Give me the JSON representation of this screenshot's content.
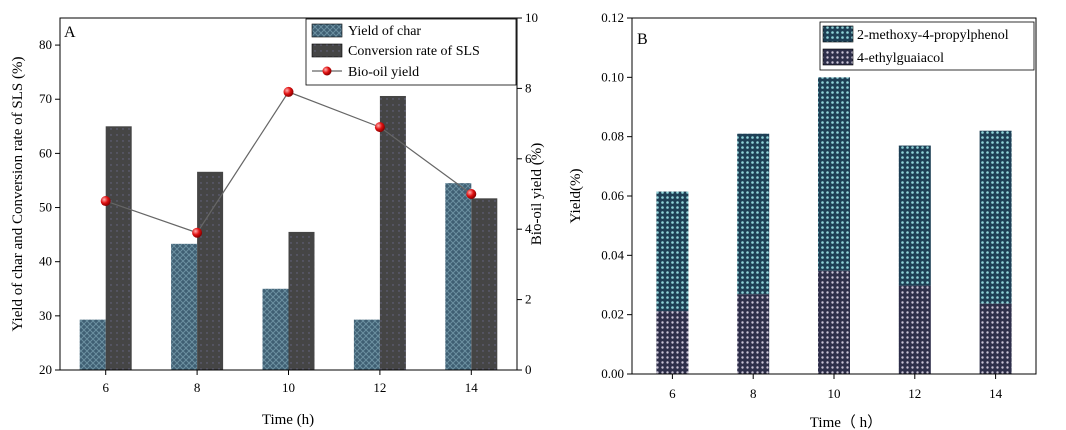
{
  "chart_data": [
    {
      "type": "bar+line",
      "panel_label": "A",
      "categories": [
        "6",
        "8",
        "10",
        "12",
        "14"
      ],
      "xlabel": "Time (h)",
      "ylabel": "Yield of char and Conversion rate of SLS (%)",
      "ylim": [
        20,
        85
      ],
      "yticks": [
        "20",
        "30",
        "40",
        "50",
        "60",
        "70",
        "80"
      ],
      "y2label": "Bio-oil yield (%)",
      "y2lim": [
        0,
        10
      ],
      "y2ticks": [
        "0",
        "2",
        "4",
        "6",
        "8",
        "10"
      ],
      "legend_position": "top-right",
      "series": [
        {
          "name": "Yield of char",
          "kind": "bar",
          "axis": "left",
          "color": "#3f5f73",
          "values": [
            29.3,
            43.3,
            35.0,
            29.3,
            54.5
          ]
        },
        {
          "name": "Conversion rate of SLS",
          "kind": "bar",
          "axis": "left",
          "color": "#4a4a4a",
          "values": [
            65.0,
            56.6,
            45.5,
            70.6,
            51.7
          ]
        },
        {
          "name": "Bio-oil yield",
          "kind": "line",
          "axis": "right",
          "color": "#666666",
          "marker_color": "#e01010",
          "values": [
            4.8,
            3.9,
            7.9,
            6.9,
            5.0
          ]
        }
      ]
    },
    {
      "type": "stacked-bar",
      "panel_label": "B",
      "categories": [
        "6",
        "8",
        "10",
        "12",
        "14"
      ],
      "xlabel": "Time（ h）",
      "ylabel": "Yield(%)",
      "ylim": [
        0,
        0.12
      ],
      "yticks": [
        "0.00",
        "0.02",
        "0.04",
        "0.06",
        "0.08",
        "0.10",
        "0.12"
      ],
      "legend_position": "top-right",
      "series": [
        {
          "name": "2-methoxy-4-propylphenol",
          "color": "#2a6f82",
          "values": [
            0.0403,
            0.0541,
            0.0652,
            0.0472,
            0.0583
          ]
        },
        {
          "name": "4-ethylguaiacol",
          "color": "#3d3f5e",
          "values": [
            0.0212,
            0.0269,
            0.0348,
            0.0298,
            0.0237
          ]
        }
      ]
    }
  ]
}
